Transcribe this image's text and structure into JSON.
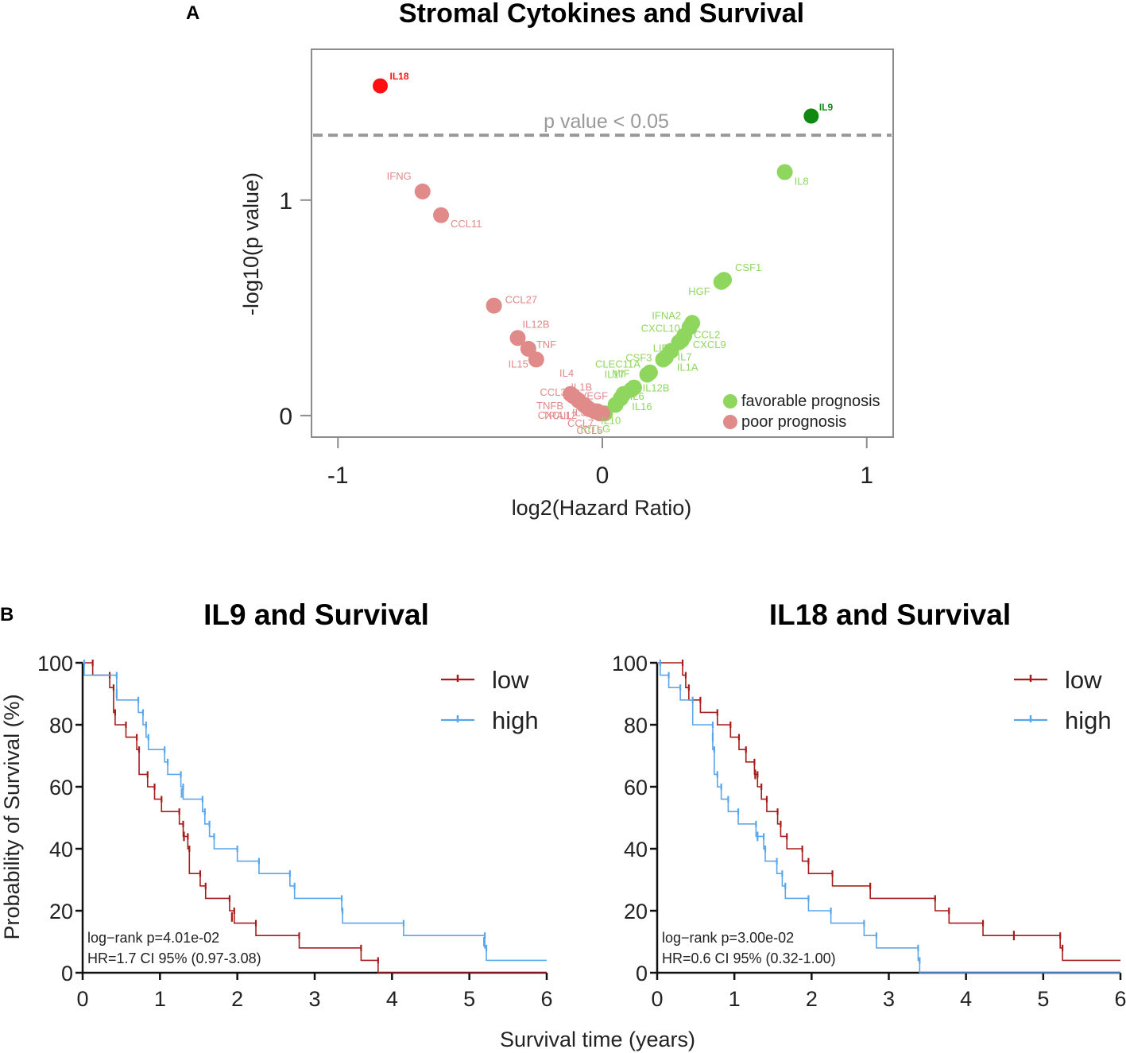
{
  "panel_labels": {
    "a": "A",
    "b": "B"
  },
  "shared_x_label": "Survival time (years)",
  "colors": {
    "favorable": "#8fd65e",
    "poor": "#e08a8a",
    "sig_poor": "#ff1111",
    "sig_favorable": "#118811",
    "threshold": "#999999",
    "low_curve": "#a61c1c",
    "high_curve": "#5aa6ea"
  },
  "chart_data": [
    {
      "type": "scatter",
      "title": "Stromal Cytokines and Survival",
      "xlabel": "log2(Hazard Ratio)",
      "ylabel": "-log10(p value)",
      "xlim": [
        -1.1,
        1.1
      ],
      "ylim": [
        -0.1,
        1.7
      ],
      "xticks": [
        {
          "v": -1,
          "label": "-1"
        },
        {
          "v": 0,
          "label": "0"
        },
        {
          "v": 1,
          "label": "1"
        }
      ],
      "yticks": [
        {
          "v": 0,
          "label": "0"
        },
        {
          "v": 1,
          "label": "1"
        }
      ],
      "threshold": {
        "value": 1.301,
        "label": "p value < 0.05"
      },
      "legend": [
        {
          "label": "favorable prognosis",
          "group": "favorable"
        },
        {
          "label": "poor prognosis",
          "group": "poor"
        }
      ],
      "points": [
        {
          "name": "IL18",
          "x": -0.84,
          "y": 1.53,
          "group": "sig_poor"
        },
        {
          "name": "IL9",
          "x": 0.79,
          "y": 1.39,
          "group": "sig_favorable"
        },
        {
          "name": "IL8",
          "x": 0.69,
          "y": 1.13,
          "group": "favorable"
        },
        {
          "name": "IFNG",
          "x": -0.68,
          "y": 1.04,
          "group": "poor"
        },
        {
          "name": "CCL11",
          "x": -0.61,
          "y": 0.93,
          "group": "poor"
        },
        {
          "name": "CSF1",
          "x": 0.46,
          "y": 0.63,
          "group": "favorable"
        },
        {
          "name": "HGF",
          "x": 0.45,
          "y": 0.62,
          "group": "favorable"
        },
        {
          "name": "CCL27",
          "x": -0.41,
          "y": 0.51,
          "group": "poor"
        },
        {
          "name": "IFNA2",
          "x": 0.34,
          "y": 0.43,
          "group": "favorable"
        },
        {
          "name": "CXCL10",
          "x": 0.33,
          "y": 0.41,
          "group": "favorable"
        },
        {
          "name": "CCL2",
          "x": 0.31,
          "y": 0.37,
          "group": "favorable"
        },
        {
          "name": "CXCL9",
          "x": 0.3,
          "y": 0.35,
          "group": "favorable"
        },
        {
          "name": "LIF",
          "x": 0.29,
          "y": 0.34,
          "group": "favorable"
        },
        {
          "name": "IL12B",
          "x": -0.32,
          "y": 0.36,
          "group": "poor"
        },
        {
          "name": "TNF",
          "x": -0.28,
          "y": 0.31,
          "group": "poor"
        },
        {
          "name": "IL15",
          "x": -0.25,
          "y": 0.26,
          "group": "poor"
        },
        {
          "name": "IL7",
          "x": 0.26,
          "y": 0.3,
          "group": "favorable"
        },
        {
          "name": "IL1A",
          "x": 0.24,
          "y": 0.27,
          "group": "favorable"
        },
        {
          "name": "CSF3",
          "x": 0.23,
          "y": 0.26,
          "group": "favorable"
        },
        {
          "name": "CLEC11A",
          "x": 0.18,
          "y": 0.2,
          "group": "favorable"
        },
        {
          "name": "MIF",
          "x": 0.17,
          "y": 0.19,
          "group": "favorable"
        },
        {
          "name": "IL17",
          "x": 0.12,
          "y": 0.13,
          "group": "favorable"
        },
        {
          "name": "IL12B",
          "x": 0.11,
          "y": 0.12,
          "group": "favorable"
        },
        {
          "name": "IL6",
          "x": 0.08,
          "y": 0.1,
          "group": "favorable"
        },
        {
          "name": "IL16",
          "x": 0.07,
          "y": 0.08,
          "group": "favorable"
        },
        {
          "name": "IL10",
          "x": 0.05,
          "y": 0.05,
          "group": "favorable"
        },
        {
          "name": "KITLG",
          "x": 0.01,
          "y": 0.01,
          "group": "favorable"
        },
        {
          "name": "IL4",
          "x": -0.12,
          "y": 0.1,
          "group": "poor"
        },
        {
          "name": "IL1B",
          "x": -0.11,
          "y": 0.09,
          "group": "poor"
        },
        {
          "name": "CCL3",
          "x": -0.09,
          "y": 0.07,
          "group": "poor"
        },
        {
          "name": "VEGF",
          "x": -0.07,
          "y": 0.05,
          "group": "poor"
        },
        {
          "name": "TNFB",
          "x": -0.06,
          "y": 0.04,
          "group": "poor"
        },
        {
          "name": "CXCL12",
          "x": -0.05,
          "y": 0.03,
          "group": "poor"
        },
        {
          "name": "IL3",
          "x": -0.03,
          "y": 0.02,
          "group": "poor"
        },
        {
          "name": "TRAIL",
          "x": -0.02,
          "y": 0.02,
          "group": "poor"
        },
        {
          "name": "CCL7",
          "x": -0.01,
          "y": 0.01,
          "group": "poor"
        },
        {
          "name": "CCL5",
          "x": 0.0,
          "y": 0.01,
          "group": "poor"
        }
      ]
    },
    {
      "type": "line",
      "title": "IL9 and Survival",
      "xlabel": "Survival time (years)",
      "ylabel": "Probability of Survival (%)",
      "xlim": [
        0,
        6
      ],
      "ylim": [
        0,
        100
      ],
      "xticks": [
        0,
        1,
        2,
        3,
        4,
        5,
        6
      ],
      "yticks": [
        0,
        20,
        40,
        60,
        80,
        100
      ],
      "annotation": [
        "log−rank p=4.01e-02",
        "HR=1.7 CI 95% (0.97-3.08)"
      ],
      "series": [
        {
          "name": "low",
          "steps": [
            [
              0,
              100
            ],
            [
              0.13,
              96
            ],
            [
              0.35,
              92
            ],
            [
              0.4,
              84
            ],
            [
              0.42,
              80
            ],
            [
              0.56,
              76
            ],
            [
              0.7,
              72
            ],
            [
              0.73,
              64
            ],
            [
              0.84,
              60
            ],
            [
              0.93,
              56
            ],
            [
              1.02,
              52
            ],
            [
              1.25,
              48
            ],
            [
              1.3,
              44
            ],
            [
              1.36,
              40
            ],
            [
              1.38,
              32
            ],
            [
              1.52,
              28
            ],
            [
              1.59,
              24
            ],
            [
              1.9,
              20
            ],
            [
              1.96,
              16
            ],
            [
              2.24,
              12
            ],
            [
              2.8,
              8
            ],
            [
              3.6,
              4
            ],
            [
              3.82,
              0
            ]
          ],
          "censor": [
            [
              1.31,
              44
            ],
            [
              1.93,
              18
            ]
          ]
        },
        {
          "name": "high",
          "steps": [
            [
              0,
              100
            ],
            [
              0.02,
              96
            ],
            [
              0.44,
              88
            ],
            [
              0.72,
              84
            ],
            [
              0.78,
              80
            ],
            [
              0.82,
              76
            ],
            [
              0.85,
              72
            ],
            [
              1.06,
              68
            ],
            [
              1.1,
              64
            ],
            [
              1.27,
              60
            ],
            [
              1.3,
              56
            ],
            [
              1.55,
              52
            ],
            [
              1.58,
              48
            ],
            [
              1.64,
              44
            ],
            [
              1.7,
              40
            ],
            [
              2.0,
              36
            ],
            [
              2.28,
              32
            ],
            [
              2.68,
              28
            ],
            [
              2.74,
              24
            ],
            [
              3.35,
              20
            ],
            [
              3.36,
              16
            ],
            [
              4.15,
              12
            ],
            [
              5.2,
              8
            ],
            [
              5.22,
              4
            ]
          ],
          "censor": [
            [
              0.44,
              90
            ],
            [
              1.28,
              58
            ],
            [
              5.19,
              10
            ]
          ]
        }
      ]
    },
    {
      "type": "line",
      "title": "IL18 and Survival",
      "xlabel": "Survival time (years)",
      "ylabel": "Probability of Survival (%)",
      "xlim": [
        0,
        6
      ],
      "ylim": [
        0,
        100
      ],
      "xticks": [
        0,
        1,
        2,
        3,
        4,
        5,
        6
      ],
      "yticks": [
        0,
        20,
        40,
        60,
        80,
        100
      ],
      "annotation": [
        "log−rank p=3.00e-02",
        "HR=0.6 CI 95% (0.32-1.00)"
      ],
      "series": [
        {
          "name": "low",
          "steps": [
            [
              0,
              100
            ],
            [
              0.33,
              96
            ],
            [
              0.37,
              92
            ],
            [
              0.41,
              88
            ],
            [
              0.56,
              84
            ],
            [
              0.78,
              80
            ],
            [
              0.95,
              76
            ],
            [
              1.06,
              72
            ],
            [
              1.15,
              68
            ],
            [
              1.26,
              64
            ],
            [
              1.3,
              60
            ],
            [
              1.35,
              56
            ],
            [
              1.42,
              52
            ],
            [
              1.56,
              48
            ],
            [
              1.6,
              44
            ],
            [
              1.68,
              40
            ],
            [
              1.88,
              36
            ],
            [
              1.96,
              32
            ],
            [
              2.27,
              28
            ],
            [
              2.76,
              24
            ],
            [
              3.6,
              20
            ],
            [
              3.78,
              16
            ],
            [
              4.22,
              12
            ],
            [
              5.22,
              8
            ],
            [
              5.25,
              4
            ]
          ],
          "censor": [
            [
              1.27,
              64
            ],
            [
              4.62,
              12
            ]
          ]
        },
        {
          "name": "high",
          "steps": [
            [
              0,
              100
            ],
            [
              0.04,
              96
            ],
            [
              0.15,
              92
            ],
            [
              0.3,
              88
            ],
            [
              0.46,
              80
            ],
            [
              0.72,
              72
            ],
            [
              0.74,
              64
            ],
            [
              0.78,
              60
            ],
            [
              0.83,
              56
            ],
            [
              0.92,
              52
            ],
            [
              1.05,
              48
            ],
            [
              1.28,
              44
            ],
            [
              1.38,
              40
            ],
            [
              1.4,
              36
            ],
            [
              1.55,
              32
            ],
            [
              1.62,
              28
            ],
            [
              1.66,
              24
            ],
            [
              1.96,
              20
            ],
            [
              2.25,
              16
            ],
            [
              2.68,
              12
            ],
            [
              2.84,
              8
            ],
            [
              3.38,
              4
            ],
            [
              3.4,
              0
            ]
          ],
          "censor": [
            [
              0.72,
              76
            ],
            [
              1.3,
              44
            ]
          ]
        }
      ]
    }
  ]
}
